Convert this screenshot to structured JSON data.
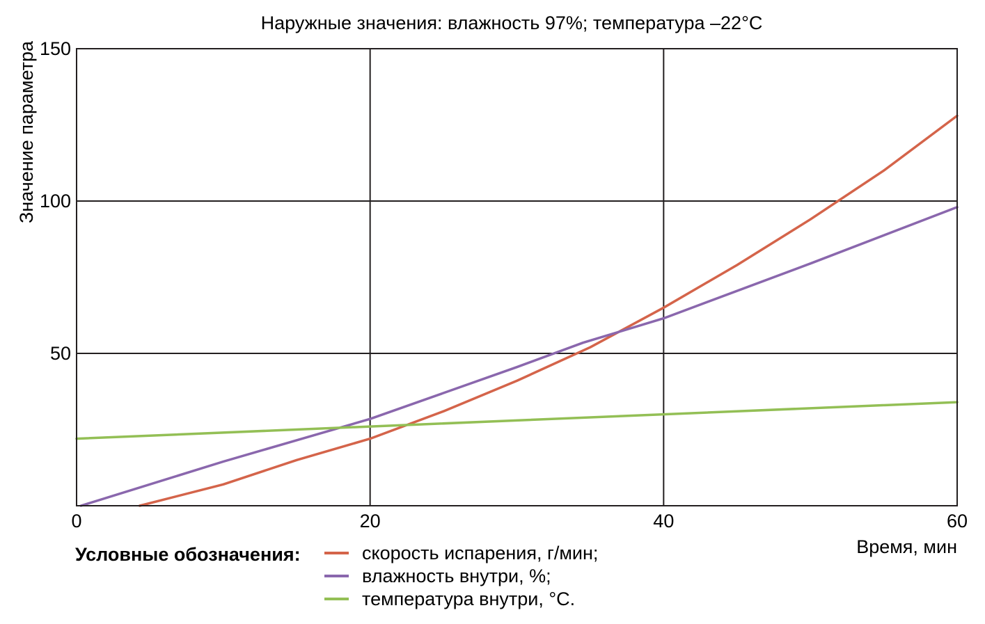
{
  "chart_data": {
    "type": "line",
    "title": "Наружные значения: влажность 97%; температура –22°C",
    "xlabel": "Время, мин",
    "ylabel": "Значение параметра",
    "xlim": [
      0,
      60
    ],
    "ylim": [
      0,
      150
    ],
    "x_ticks": [
      "0",
      "20",
      "40",
      "60"
    ],
    "y_ticks": [
      "50",
      "100",
      "150"
    ],
    "x_tick_values": [
      0,
      20,
      40,
      60
    ],
    "y_tick_values": [
      50,
      100,
      150
    ],
    "grid": true,
    "legend_title": "Условные обозначения:",
    "legend_placement": "bottom",
    "series": [
      {
        "name": "скорость испарения, г/мин;",
        "color": "#d4644a",
        "x": [
          4.3,
          10,
          15,
          20,
          25,
          30,
          35,
          40,
          45,
          50,
          55,
          60
        ],
        "y": [
          0,
          7,
          15,
          22,
          31,
          41,
          52,
          65,
          79,
          94,
          110,
          128
        ]
      },
      {
        "name": "влажность внутри, %;",
        "color": "#8a67ad",
        "x": [
          0.3,
          10,
          20,
          30,
          34.5,
          40,
          50,
          60
        ],
        "y": [
          0,
          14.5,
          28.5,
          45.5,
          53.5,
          61.5,
          79.5,
          98
        ]
      },
      {
        "name": "температура внутри, °C.",
        "color": "#93bf55",
        "x": [
          0,
          20,
          40,
          60
        ],
        "y": [
          22,
          26,
          30,
          34
        ]
      }
    ]
  }
}
